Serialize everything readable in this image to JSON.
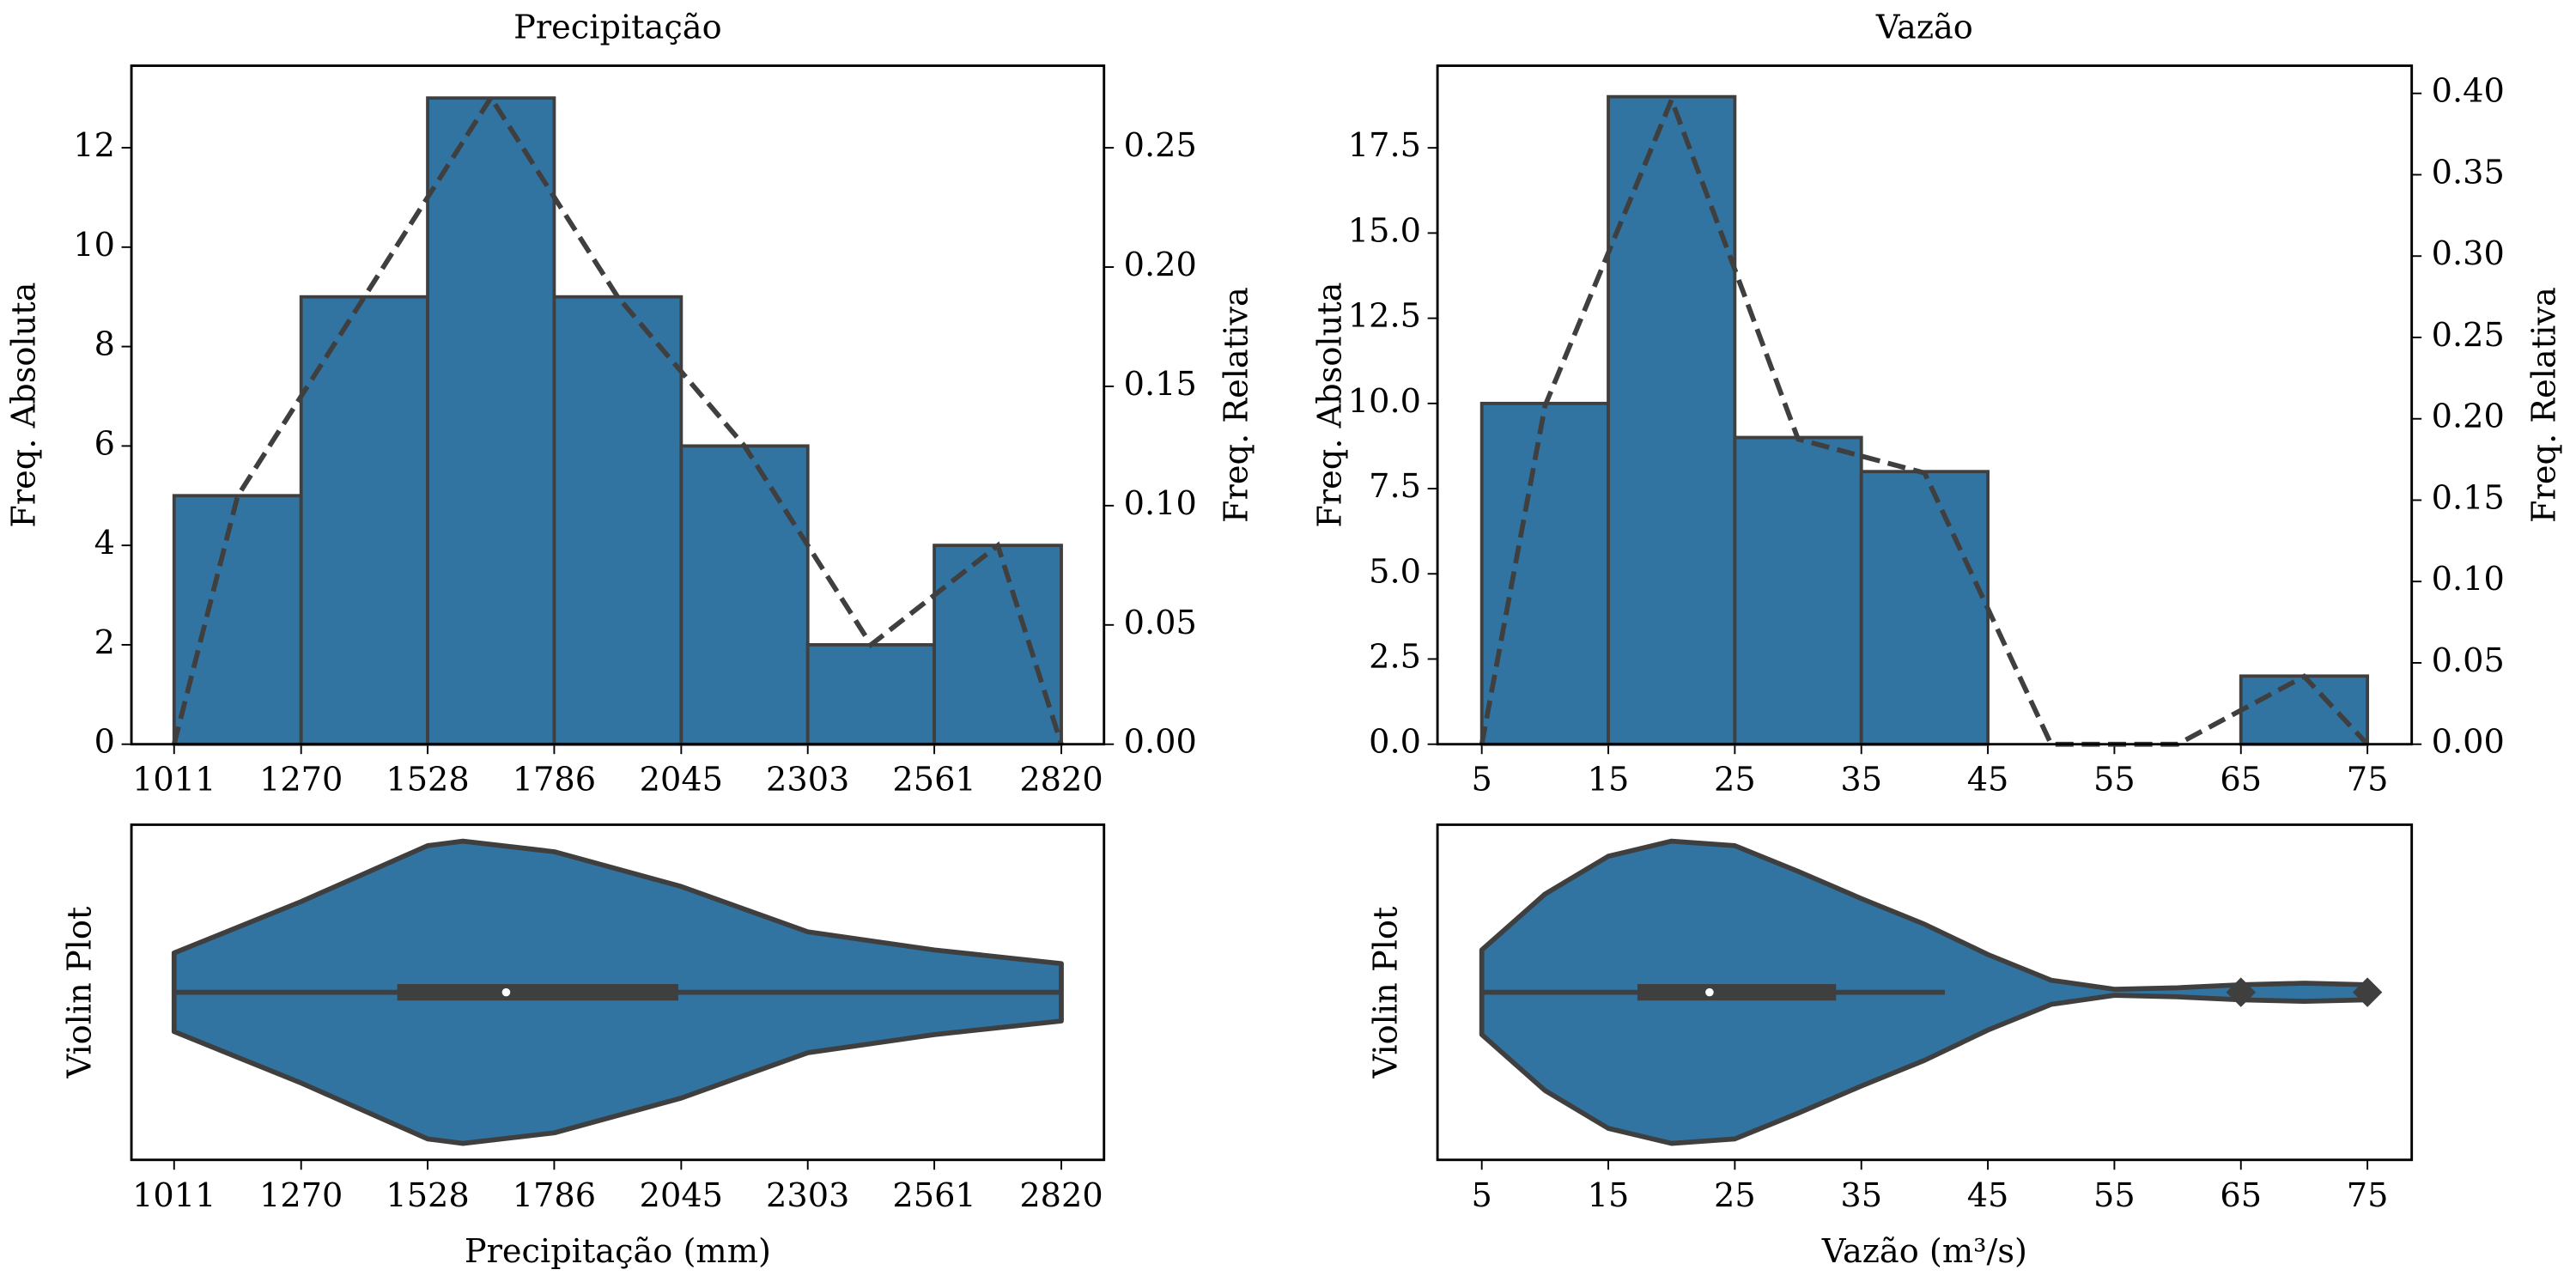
{
  "chart_data": [
    {
      "type": "histogram",
      "title": "Precipitação",
      "ylabel": "Freq. Absoluta",
      "y2label": "Freq. Relativa",
      "color": "#3274a1",
      "edgecolor": "#3f3f3f",
      "bins": [
        1011,
        1270,
        1528,
        1786,
        2045,
        2303,
        2561,
        2820
      ],
      "counts": [
        5,
        9,
        13,
        9,
        6,
        2,
        4
      ],
      "frequency_polygon": {
        "x": [
          1011,
          1140.5,
          1399,
          1657,
          1915.5,
          2174,
          2432,
          2690.5,
          2820
        ],
        "values": [
          0,
          0.104,
          0.1875,
          0.271,
          0.1875,
          0.125,
          0.0417,
          0.0833,
          0
        ],
        "axis": "y2"
      },
      "xlim": [
        924,
        2907
      ],
      "xticks": [
        1011,
        1270,
        1528,
        1786,
        2045,
        2303,
        2561,
        2820
      ],
      "ylim": [
        0,
        13.65
      ],
      "yticks": [
        0,
        2,
        4,
        6,
        8,
        10,
        12
      ],
      "y2lim": [
        0,
        0.2844
      ],
      "y2ticks": [
        {
          "value": 0,
          "label": "0.00"
        },
        {
          "value": 0.05,
          "label": "0.05"
        },
        {
          "value": 0.1,
          "label": "0.10"
        },
        {
          "value": 0.15,
          "label": "0.15"
        },
        {
          "value": 0.2,
          "label": "0.20"
        },
        {
          "value": 0.25,
          "label": "0.25"
        }
      ]
    },
    {
      "type": "histogram",
      "title": "Vazão",
      "ylabel": "Freq. Absoluta",
      "y2label": "Freq. Relativa",
      "color": "#3274a1",
      "edgecolor": "#3f3f3f",
      "bins": [
        5,
        15,
        25,
        35,
        45,
        55,
        65,
        75
      ],
      "counts": [
        10,
        19,
        9,
        8,
        0,
        0,
        2
      ],
      "frequency_polygon": {
        "x": [
          5,
          10,
          20,
          30,
          40,
          50,
          60,
          70,
          75
        ],
        "values": [
          0,
          0.208,
          0.396,
          0.1875,
          0.1667,
          0,
          0,
          0.0417,
          0
        ],
        "axis": "y2"
      },
      "xlim": [
        1.5,
        78.5
      ],
      "xticks": [
        5,
        15,
        25,
        35,
        45,
        55,
        65,
        75
      ],
      "ylim": [
        0,
        19.91
      ],
      "yticks": [
        {
          "value": 0,
          "label": "0.0"
        },
        {
          "value": 2.5,
          "label": "2.5"
        },
        {
          "value": 5,
          "label": "5.0"
        },
        {
          "value": 7.5,
          "label": "7.5"
        },
        {
          "value": 10,
          "label": "10.0"
        },
        {
          "value": 12.5,
          "label": "12.5"
        },
        {
          "value": 15,
          "label": "15.0"
        },
        {
          "value": 17.5,
          "label": "17.5"
        }
      ],
      "y2lim": [
        0,
        0.417
      ],
      "y2ticks": [
        {
          "value": 0,
          "label": "0.00"
        },
        {
          "value": 0.05,
          "label": "0.05"
        },
        {
          "value": 0.1,
          "label": "0.10"
        },
        {
          "value": 0.15,
          "label": "0.15"
        },
        {
          "value": 0.2,
          "label": "0.20"
        },
        {
          "value": 0.25,
          "label": "0.25"
        },
        {
          "value": 0.3,
          "label": "0.30"
        },
        {
          "value": 0.35,
          "label": "0.35"
        },
        {
          "value": 0.4,
          "label": "0.40"
        }
      ]
    },
    {
      "type": "violin",
      "xlabel": "Precipitação (mm)",
      "ylabel": "Violin Plot",
      "color": "#3274a1",
      "edgecolor": "#3f3f3f",
      "x": [
        1011,
        1270,
        1528,
        1600,
        1786,
        2045,
        2303,
        2561,
        2820
      ],
      "density": [
        0.26,
        0.6,
        0.97,
        1,
        0.93,
        0.7,
        0.4,
        0.28,
        0.19
      ],
      "whisker_low": 1011,
      "q1": 1466,
      "median": 1688,
      "q3": 2039,
      "whisker_high": 2820,
      "outliers": [],
      "xlim": [
        924,
        2907
      ],
      "xticks": [
        1011,
        1270,
        1528,
        1786,
        2045,
        2303,
        2561,
        2820
      ]
    },
    {
      "type": "violin",
      "xlabel": "Vazão (m³/s)",
      "ylabel": "Violin Plot",
      "color": "#3274a1",
      "edgecolor": "#3f3f3f",
      "x": [
        5,
        10,
        15,
        20,
        25,
        30,
        35,
        40,
        45,
        50,
        55,
        60,
        65,
        70,
        75
      ],
      "density": [
        0.28,
        0.65,
        0.9,
        1,
        0.97,
        0.8,
        0.62,
        0.45,
        0.25,
        0.08,
        0.02,
        0.03,
        0.05,
        0.06,
        0.05
      ],
      "whisker_low": 5,
      "q1": 17.3,
      "median": 23,
      "q3": 33,
      "whisker_high": 41.6,
      "outliers": [
        65,
        75
      ],
      "xlim": [
        1.5,
        78.5
      ],
      "xticks": [
        5,
        15,
        25,
        35,
        45,
        55,
        65,
        75
      ]
    }
  ]
}
